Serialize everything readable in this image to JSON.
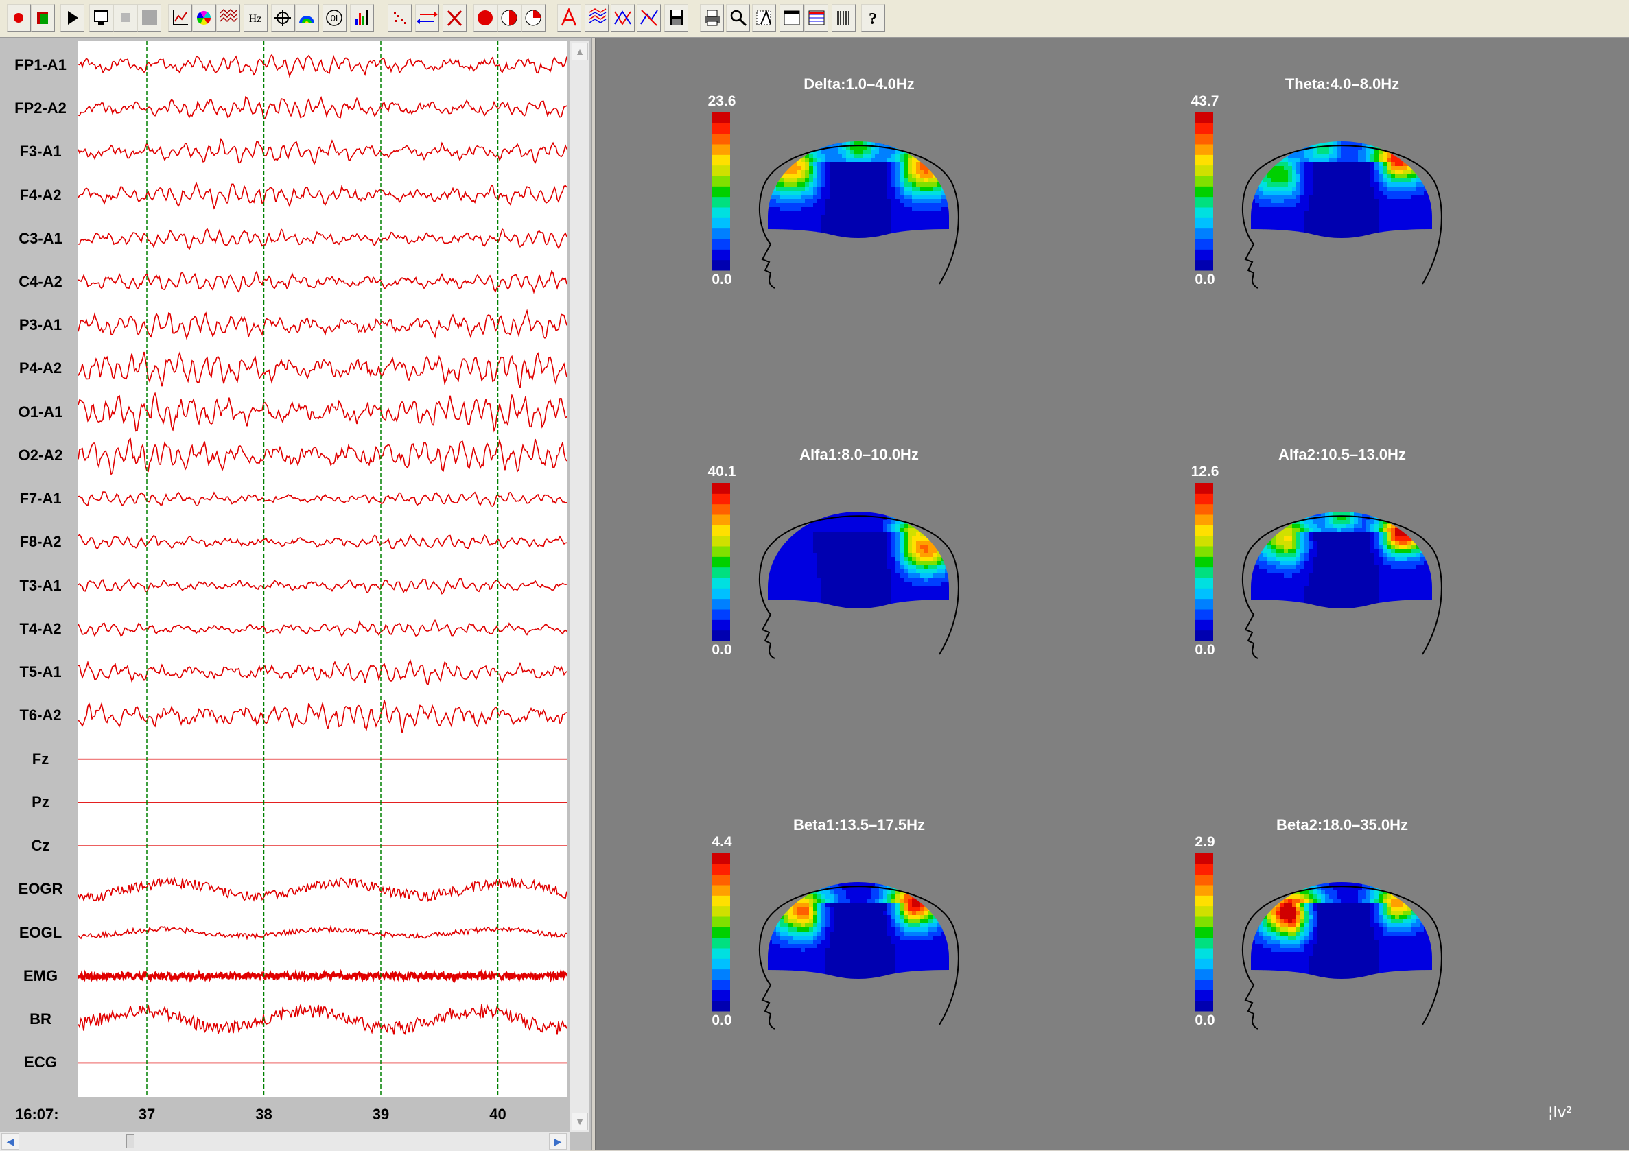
{
  "toolbar": {
    "buttons": [
      {
        "name": "record-icon"
      },
      {
        "name": "montage-icon"
      },
      {
        "name": "play-icon"
      },
      {
        "name": "monitor-icon"
      },
      {
        "name": "stop-icon"
      },
      {
        "name": "blank-icon"
      },
      {
        "name": "graph-icon"
      },
      {
        "name": "color-wheel-icon"
      },
      {
        "name": "waves-icon"
      },
      {
        "name": "frequency-icon",
        "text": "Hz"
      },
      {
        "name": "crosshair-icon"
      },
      {
        "name": "topomap-icon"
      },
      {
        "name": "coherence-icon",
        "text": "0I"
      },
      {
        "name": "histogram-icon"
      },
      {
        "name": "scatter-icon"
      },
      {
        "name": "swap-arrows-icon"
      },
      {
        "name": "delete-icon"
      },
      {
        "name": "red-circle-icon"
      },
      {
        "name": "half-circle-icon"
      },
      {
        "name": "pie-icon"
      },
      {
        "name": "font-icon"
      },
      {
        "name": "filter-icon"
      },
      {
        "name": "cross-lines-icon"
      },
      {
        "name": "artifact-icon"
      },
      {
        "name": "save-icon"
      },
      {
        "name": "print-icon"
      },
      {
        "name": "zoom-icon"
      },
      {
        "name": "annotate-icon"
      },
      {
        "name": "calendar-icon"
      },
      {
        "name": "table-icon"
      },
      {
        "name": "markers-icon"
      },
      {
        "name": "help-icon",
        "text": "?"
      }
    ]
  },
  "eeg": {
    "channels": [
      {
        "label": "FP1-A1",
        "kind": "eeg",
        "amp": 0.55
      },
      {
        "label": "FP2-A2",
        "kind": "eeg",
        "amp": 0.55
      },
      {
        "label": "F3-A1",
        "kind": "eeg",
        "amp": 0.55
      },
      {
        "label": "F4-A2",
        "kind": "eeg",
        "amp": 0.55
      },
      {
        "label": "C3-A1",
        "kind": "eeg",
        "amp": 0.45
      },
      {
        "label": "C4-A2",
        "kind": "eeg",
        "amp": 0.5
      },
      {
        "label": "P3-A1",
        "kind": "eeg",
        "amp": 0.65
      },
      {
        "label": "P4-A2",
        "kind": "eeg",
        "amp": 0.85
      },
      {
        "label": "O1-A1",
        "kind": "eeg",
        "amp": 0.85
      },
      {
        "label": "O2-A2",
        "kind": "eeg",
        "amp": 0.85
      },
      {
        "label": "F7-A1",
        "kind": "eeg",
        "amp": 0.35
      },
      {
        "label": "F8-A2",
        "kind": "eeg",
        "amp": 0.35
      },
      {
        "label": "T3-A1",
        "kind": "eeg",
        "amp": 0.35
      },
      {
        "label": "T4-A2",
        "kind": "eeg",
        "amp": 0.35
      },
      {
        "label": "T5-A1",
        "kind": "eeg",
        "amp": 0.55
      },
      {
        "label": "T6-A2",
        "kind": "eeg",
        "amp": 0.75
      },
      {
        "label": "Fz",
        "kind": "flat",
        "amp": 0
      },
      {
        "label": "Pz",
        "kind": "flat",
        "amp": 0
      },
      {
        "label": "Cz",
        "kind": "flat",
        "amp": 0
      },
      {
        "label": "EOGR",
        "kind": "eog",
        "amp": 0.06
      },
      {
        "label": "EOGL",
        "kind": "eog",
        "amp": 0.03
      },
      {
        "label": "EMG",
        "kind": "emg",
        "amp": 0.05
      },
      {
        "label": "BR",
        "kind": "eog",
        "amp": 0.08
      },
      {
        "label": "ECG",
        "kind": "flat",
        "amp": 0
      }
    ],
    "time_origin": "16:07:",
    "seconds": [
      "37",
      "38",
      "39",
      "40"
    ],
    "trace_color": "#e00000",
    "marker_color": "#008000"
  },
  "maps": [
    {
      "title": "Delta:1.0–4.0Hz",
      "max": "23.6",
      "min": "0.0",
      "pattern": "delta"
    },
    {
      "title": "Theta:4.0–8.0Hz",
      "max": "43.7",
      "min": "0.0",
      "pattern": "theta"
    },
    {
      "title": "Alfa1:8.0–10.0Hz",
      "max": "40.1",
      "min": "0.0",
      "pattern": "alfa1"
    },
    {
      "title": "Alfa2:10.5–13.0Hz",
      "max": "12.6",
      "min": "0.0",
      "pattern": "alfa2"
    },
    {
      "title": "Beta1:13.5–17.5Hz",
      "max": "4.4",
      "min": "0.0",
      "pattern": "beta1"
    },
    {
      "title": "Beta2:18.0–35.0Hz",
      "max": "2.9",
      "min": "0.0",
      "pattern": "beta2"
    }
  ],
  "colormap": [
    "#0000b0",
    "#0000e0",
    "#0040ff",
    "#0080ff",
    "#00c0ff",
    "#00e0e0",
    "#00e080",
    "#00d000",
    "#80e000",
    "#d0e000",
    "#ffe000",
    "#ffa000",
    "#ff6000",
    "#ff2000",
    "#d00000"
  ],
  "logo": "¦lv²"
}
